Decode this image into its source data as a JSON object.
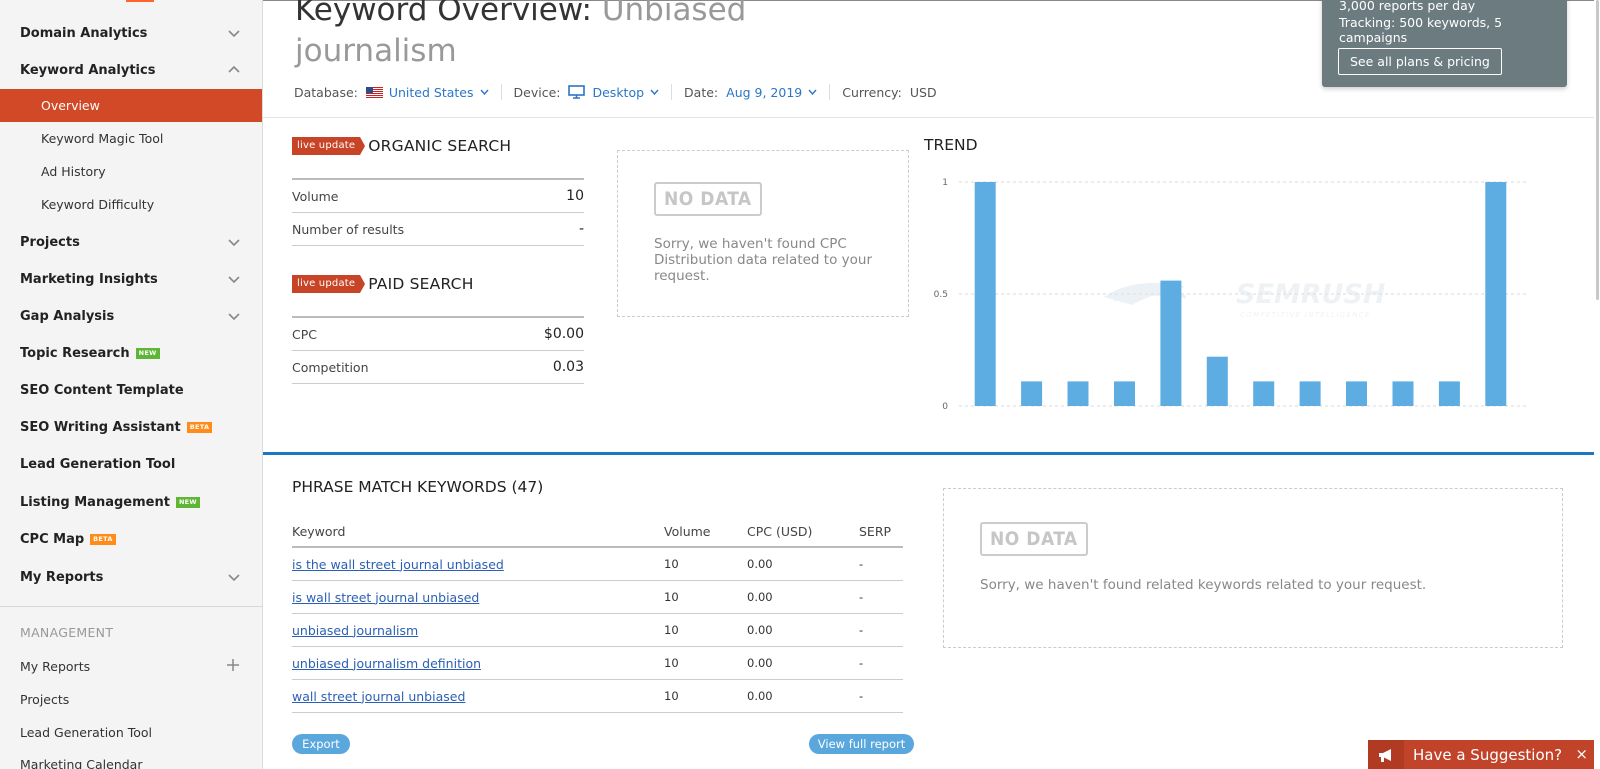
{
  "sidebar": {
    "sections": [
      {
        "label": "Domain Analytics",
        "expanded": false
      },
      {
        "label": "Keyword Analytics",
        "expanded": true,
        "children": [
          "Overview",
          "Keyword Magic Tool",
          "Ad History",
          "Keyword Difficulty"
        ],
        "active_child": "Overview"
      },
      {
        "label": "Projects",
        "expanded": false
      },
      {
        "label": "Marketing Insights",
        "expanded": false
      },
      {
        "label": "Gap Analysis",
        "expanded": false
      },
      {
        "label": "Topic Research",
        "badge": "NEW"
      },
      {
        "label": "SEO Content Template"
      },
      {
        "label": "SEO Writing Assistant",
        "badge": "BETA"
      },
      {
        "label": "Lead Generation Tool"
      },
      {
        "label": "Listing Management",
        "badge": "NEW"
      },
      {
        "label": "CPC Map",
        "badge": "BETA"
      },
      {
        "label": "My Reports",
        "expanded": false
      }
    ],
    "management": {
      "title": "MANAGEMENT",
      "items": [
        "My Reports",
        "Projects",
        "Lead Generation Tool",
        "Marketing Calendar"
      ]
    }
  },
  "header": {
    "title_prefix": "Keyword Overview:",
    "keyword": "Unbiased journalism",
    "filters": {
      "database_label": "Database:",
      "database_value": "United States",
      "device_label": "Device:",
      "device_value": "Desktop",
      "date_label": "Date:",
      "date_value": "Aug 9, 2019",
      "currency_label": "Currency:",
      "currency_value": "USD"
    }
  },
  "plan_popup": {
    "line1": "3,000 reports per day",
    "line2": "Tracking: 500 keywords, 5 campaigns",
    "button": "See all plans & pricing"
  },
  "organic": {
    "badge": "live update",
    "title": "ORGANIC SEARCH",
    "rows": [
      {
        "label": "Volume",
        "value": "10"
      },
      {
        "label": "Number of results",
        "value": "-"
      }
    ]
  },
  "paid": {
    "badge": "live update",
    "title": "PAID SEARCH",
    "rows": [
      {
        "label": "CPC",
        "value": "$0.00"
      },
      {
        "label": "Competition",
        "value": "0.03"
      }
    ]
  },
  "cpc_distribution": {
    "stamp": "NO DATA",
    "message": "Sorry, we haven't found CPC Distribution data related to your request."
  },
  "trend": {
    "title": "TREND",
    "watermark": "SEMRUSH",
    "watermark_sub": "COMPETITIVE INTELLIGENCE"
  },
  "chart_data": {
    "type": "bar",
    "title": "TREND",
    "values": [
      1,
      0.11,
      0.11,
      0.11,
      0.56,
      0.22,
      0.11,
      0.11,
      0.11,
      0.11,
      0.11,
      1
    ],
    "ylim": [
      0,
      1
    ],
    "yticks": [
      "1",
      "0.5",
      "0"
    ],
    "grid": true,
    "color": "#5dade2"
  },
  "phrase_match": {
    "title": "PHRASE MATCH KEYWORDS (47)",
    "columns": [
      "Keyword",
      "Volume",
      "CPC (USD)",
      "SERP"
    ],
    "rows": [
      {
        "keyword": "is the wall street journal unbiased",
        "volume": "10",
        "cpc": "0.00",
        "serp": "-"
      },
      {
        "keyword": "is wall street journal unbiased",
        "volume": "10",
        "cpc": "0.00",
        "serp": "-"
      },
      {
        "keyword": "unbiased journalism",
        "volume": "10",
        "cpc": "0.00",
        "serp": "-"
      },
      {
        "keyword": "unbiased journalism definition",
        "volume": "10",
        "cpc": "0.00",
        "serp": "-"
      },
      {
        "keyword": "wall street journal unbiased",
        "volume": "10",
        "cpc": "0.00",
        "serp": "-"
      }
    ],
    "export_label": "Export",
    "view_full_label": "View full report"
  },
  "related": {
    "stamp": "NO DATA",
    "message": "Sorry, we haven't found related keywords related to your request."
  },
  "suggestion": {
    "label": "Have a Suggestion?",
    "close": "×"
  },
  "colors": {
    "accent": "#d14927",
    "link": "#2b76c7",
    "bar": "#5dade2",
    "popup": "#6b7b80"
  }
}
